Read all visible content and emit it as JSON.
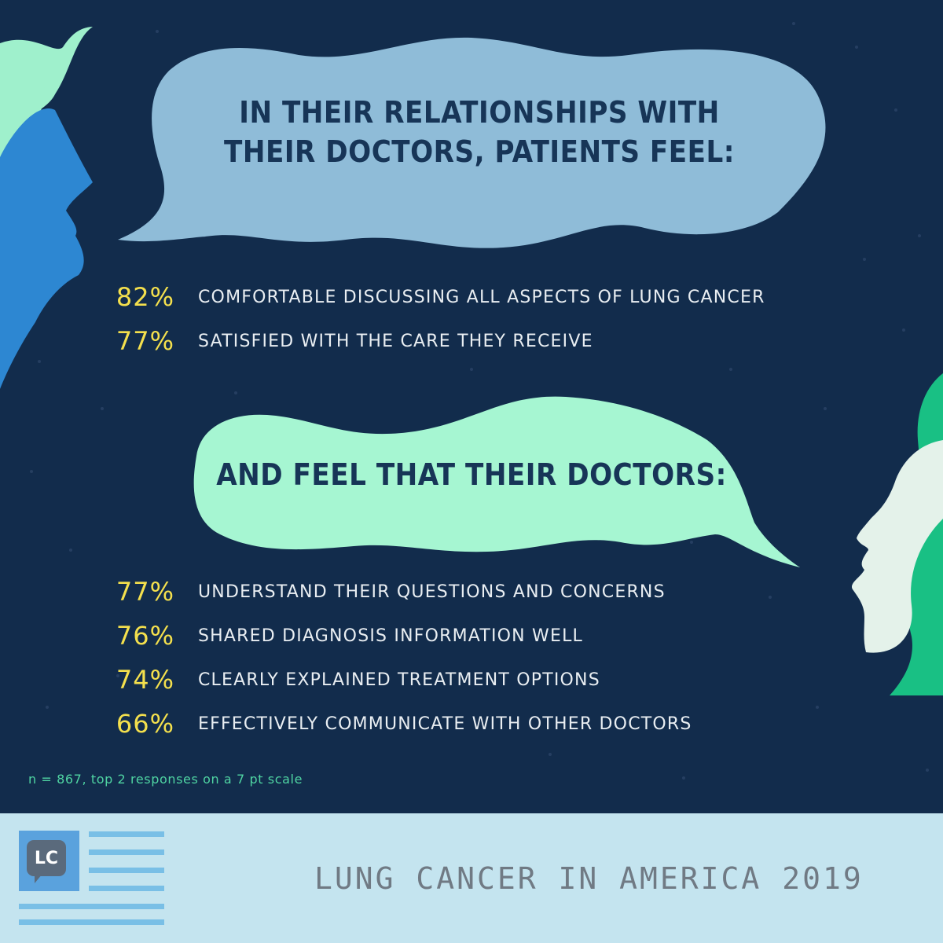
{
  "bubble_top": {
    "line1": "IN THEIR RELATIONSHIPS WITH",
    "line2": "THEIR DOCTORS, PATIENTS FEEL:"
  },
  "patients_feel": [
    {
      "pct": "82%",
      "label": "COMFORTABLE DISCUSSING ALL ASPECTS OF LUNG CANCER"
    },
    {
      "pct": "77%",
      "label": "SATISFIED WITH THE CARE THEY RECEIVE"
    }
  ],
  "bubble_bottom": {
    "line1": "AND FEEL THAT THEIR DOCTORS:"
  },
  "doctors": [
    {
      "pct": "77%",
      "label": "UNDERSTAND THEIR QUESTIONS AND CONCERNS"
    },
    {
      "pct": "76%",
      "label": "SHARED DIAGNOSIS INFORMATION WELL"
    },
    {
      "pct": "74%",
      "label": "CLEARLY EXPLAINED TREATMENT OPTIONS"
    },
    {
      "pct": "66%",
      "label": "EFFECTIVELY COMMUNICATE WITH OTHER DOCTORS"
    }
  ],
  "footnote": "n = 867, top 2 responses on a 7 pt scale",
  "footer": {
    "logo_text": "LC",
    "title": "LUNG CANCER IN AMERICA 2019"
  },
  "colors": {
    "background": "#122c4c",
    "percent": "#f4e04d",
    "bubble_top": "#8fbcd8",
    "bubble_bottom": "#a6f6d2",
    "footer": "#c4e4ef"
  }
}
